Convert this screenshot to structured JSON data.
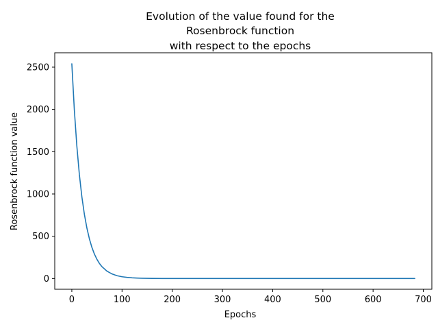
{
  "chart_data": {
    "type": "line",
    "title_lines": [
      "Evolution of the value found for the",
      "Rosenbrock function",
      "with respect to the epochs"
    ],
    "xlabel": "Epochs",
    "ylabel": "Rosenbrock function value",
    "xlim": [
      -34,
      717
    ],
    "ylim": [
      -127,
      2670
    ],
    "x_ticks": [
      0,
      100,
      200,
      300,
      400,
      500,
      600,
      700
    ],
    "y_ticks": [
      0,
      500,
      1000,
      1500,
      2000,
      2500
    ],
    "grid": false,
    "legend": "none",
    "series": [
      {
        "color": "#1f77b4",
        "x": [
          0,
          5,
          10,
          15,
          20,
          25,
          30,
          35,
          40,
          45,
          50,
          55,
          60,
          70,
          80,
          90,
          100,
          110,
          120,
          130,
          140,
          150,
          160,
          180,
          200,
          250,
          300,
          400,
          500,
          600,
          683
        ],
        "y": [
          2540,
          1995,
          1567,
          1231,
          967,
          760,
          597,
          469,
          368,
          289,
          227,
          178,
          140,
          87,
          54,
          33,
          21,
          13,
          8,
          5,
          3,
          2,
          1,
          0.5,
          0.2,
          0.02,
          0,
          0,
          0,
          0,
          0
        ]
      }
    ]
  }
}
